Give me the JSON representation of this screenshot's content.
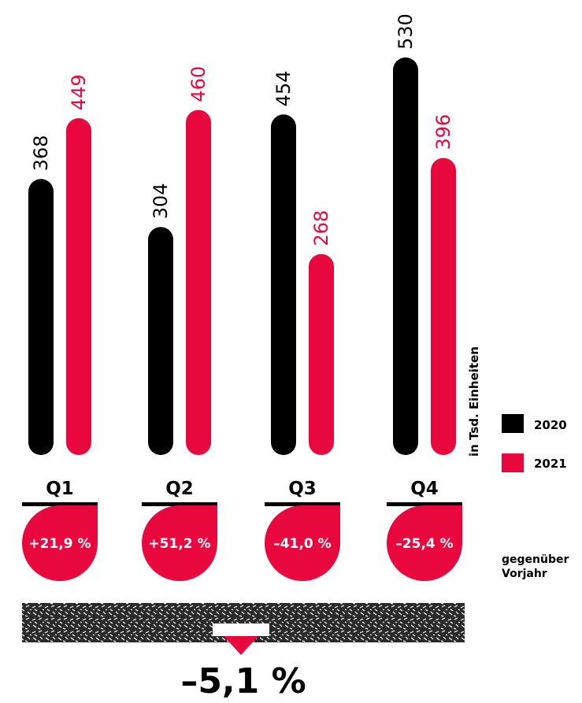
{
  "chart_data": {
    "type": "bar",
    "categories": [
      "Q1",
      "Q2",
      "Q3",
      "Q4"
    ],
    "series": [
      {
        "name": "2020",
        "values": [
          368,
          304,
          454,
          530
        ],
        "color": "#000000"
      },
      {
        "name": "2021",
        "values": [
          449,
          460,
          268,
          396
        ],
        "color": "#e8083e"
      }
    ],
    "changes": [
      "+21,9 %",
      "+51,2 %",
      "–41,0 %",
      "–25,4 %"
    ],
    "ylabel": "in Tsd. Einheiten",
    "comparison_label": [
      "gegenüber",
      "Vorjahr"
    ],
    "total_change": "–5,1 %",
    "ylim": [
      0,
      530
    ],
    "grid": false,
    "legend": "right"
  },
  "colors": {
    "accent": "#e8083e",
    "base": "#000000",
    "texture": "#2a2a2a"
  }
}
